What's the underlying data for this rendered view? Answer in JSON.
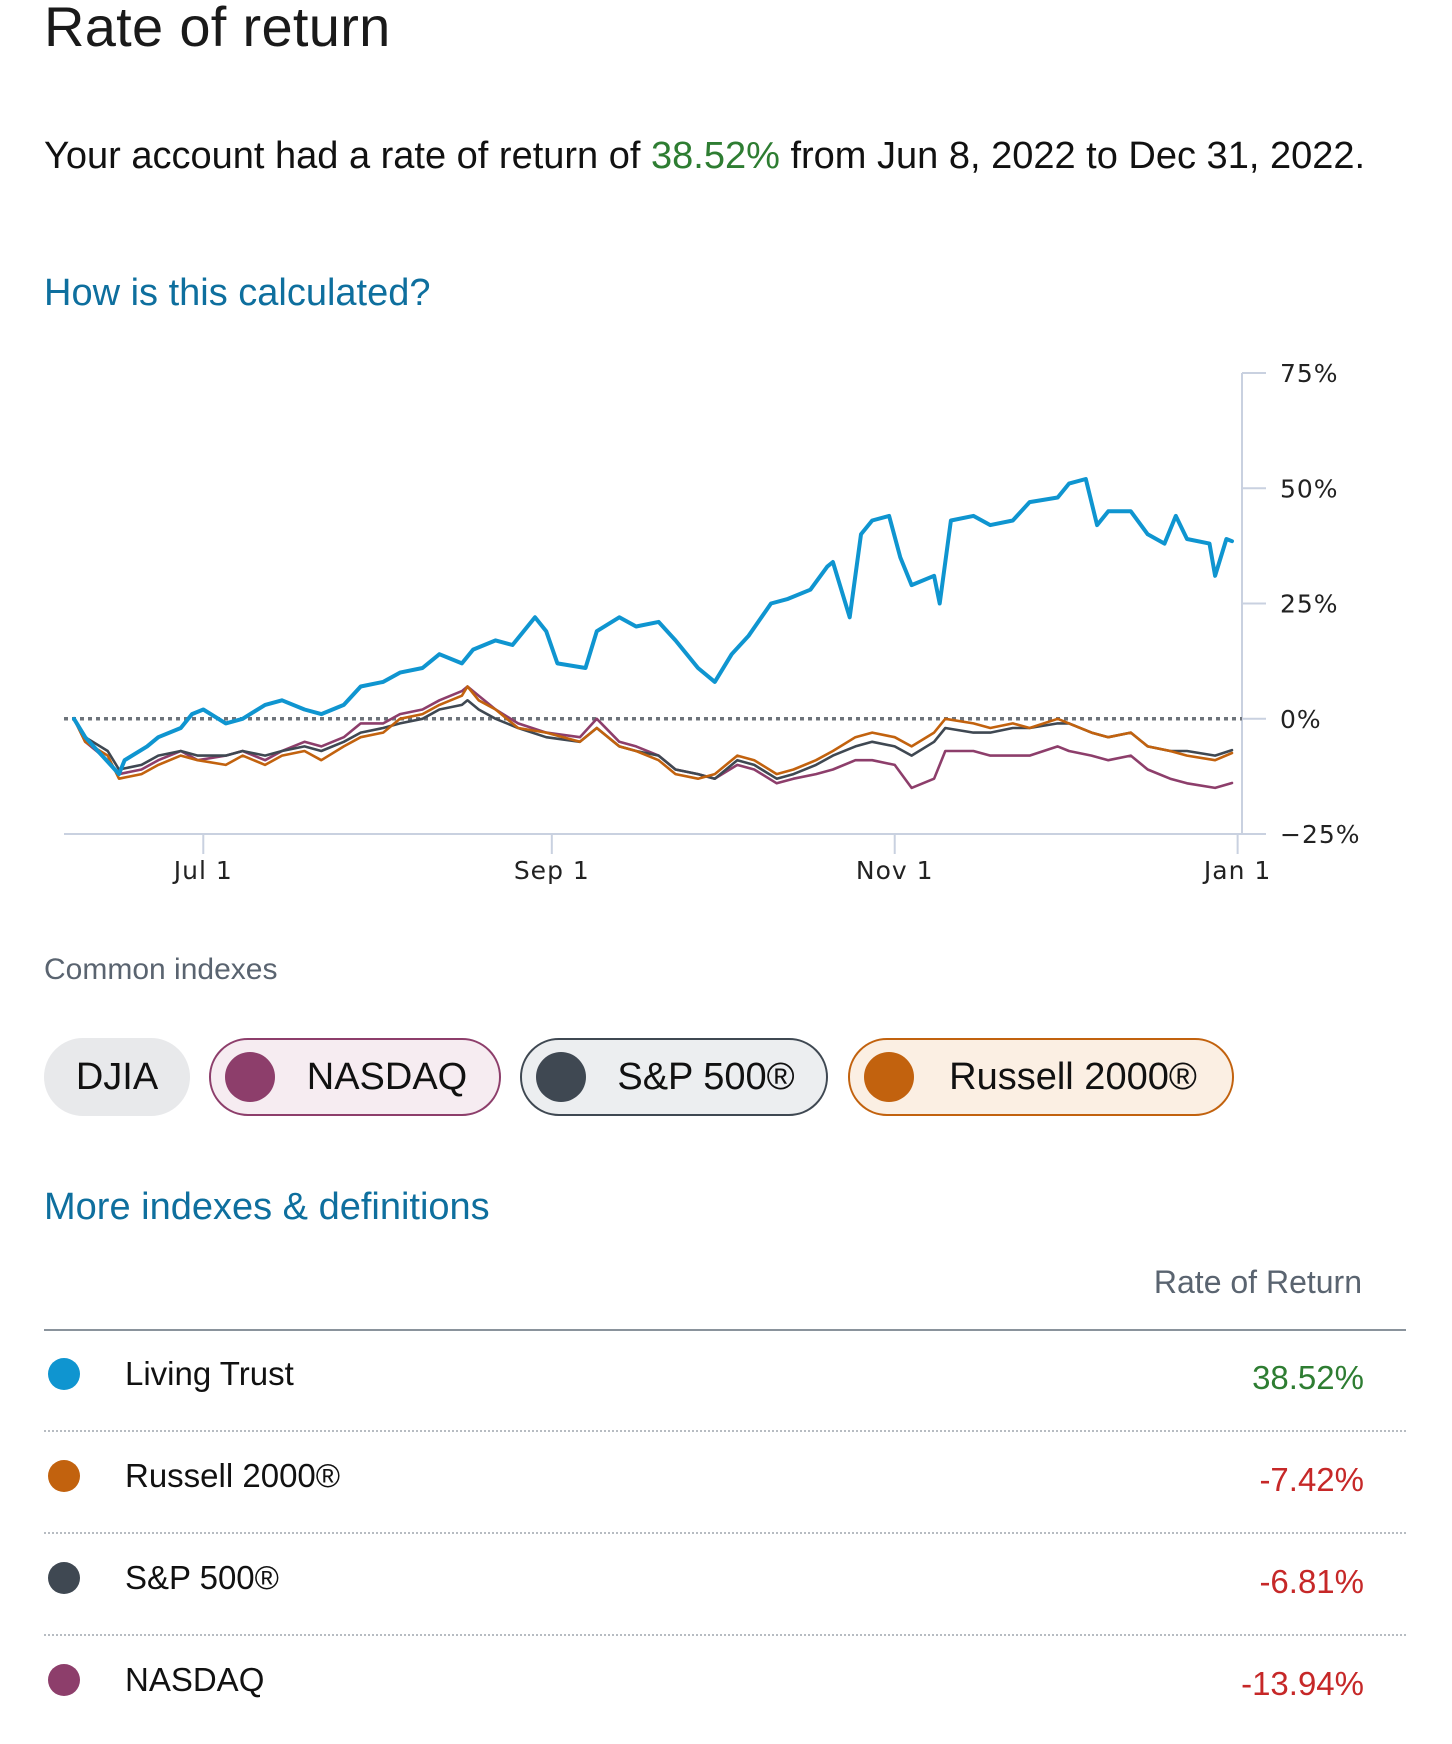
{
  "page": {
    "title": "Rate of return",
    "summary_prefix": "Your account had a rate of return of ",
    "summary_value": "38.52%",
    "summary_suffix": " from Jun 8, 2022 to Dec 31, 2022.",
    "how_link": "How is this calculated?",
    "more_link": "More indexes & definitions",
    "common_indexes_label": "Common indexes"
  },
  "colors": {
    "account": "#0f95d0",
    "nasdaq": "#8d3e6b",
    "sp500": "#3f4852",
    "russell": "#c2620e",
    "positive": "#2e7d32",
    "negative": "#c62828",
    "link": "#0e6f9e"
  },
  "chips": [
    {
      "label": "DJIA",
      "selected": false
    },
    {
      "label": "NASDAQ",
      "selected": true
    },
    {
      "label": "S&P 500®",
      "selected": true
    },
    {
      "label": "Russell 2000®",
      "selected": true
    }
  ],
  "table": {
    "header": "Rate of Return",
    "rows": [
      {
        "name": "Living Trust",
        "value": "38.52%"
      },
      {
        "name": "Russell 2000®",
        "value": "-7.42%"
      },
      {
        "name": "S&P 500®",
        "value": "-6.81%"
      },
      {
        "name": "NASDAQ",
        "value": "-13.94%"
      }
    ]
  },
  "chart_data": {
    "type": "line",
    "x_start": "2022-06-08",
    "x_end": "2022-12-31",
    "ylim": [
      -25,
      75
    ],
    "y_ticks": [
      75,
      50,
      25,
      0,
      -25
    ],
    "y_tick_labels": [
      "75%",
      "50%",
      "25%",
      "0%",
      "−25%"
    ],
    "x_ticks": [
      "2022-07-01",
      "2022-09-01",
      "2022-11-01",
      "2023-01-01"
    ],
    "x_tick_labels": [
      "Jul 1",
      "Sep 1",
      "Nov 1",
      "Jan 1"
    ],
    "zero_line": "dotted",
    "y_axis_side": "right",
    "series": [
      {
        "name": "Living Trust",
        "color_key": "account",
        "points": [
          [
            "2022-06-08",
            0
          ],
          [
            "2022-06-10",
            -4
          ],
          [
            "2022-06-13",
            -8
          ],
          [
            "2022-06-16",
            -12
          ],
          [
            "2022-06-17",
            -9
          ],
          [
            "2022-06-21",
            -6
          ],
          [
            "2022-06-23",
            -4
          ],
          [
            "2022-06-27",
            -2
          ],
          [
            "2022-06-29",
            1
          ],
          [
            "2022-07-01",
            2
          ],
          [
            "2022-07-05",
            -1
          ],
          [
            "2022-07-08",
            0
          ],
          [
            "2022-07-12",
            3
          ],
          [
            "2022-07-15",
            4
          ],
          [
            "2022-07-19",
            2
          ],
          [
            "2022-07-22",
            1
          ],
          [
            "2022-07-26",
            3
          ],
          [
            "2022-07-29",
            7
          ],
          [
            "2022-08-02",
            8
          ],
          [
            "2022-08-05",
            10
          ],
          [
            "2022-08-09",
            11
          ],
          [
            "2022-08-12",
            14
          ],
          [
            "2022-08-16",
            12
          ],
          [
            "2022-08-18",
            15
          ],
          [
            "2022-08-22",
            17
          ],
          [
            "2022-08-25",
            16
          ],
          [
            "2022-08-29",
            22
          ],
          [
            "2022-08-31",
            19
          ],
          [
            "2022-09-02",
            12
          ],
          [
            "2022-09-07",
            11
          ],
          [
            "2022-09-09",
            19
          ],
          [
            "2022-09-13",
            22
          ],
          [
            "2022-09-16",
            20
          ],
          [
            "2022-09-20",
            21
          ],
          [
            "2022-09-23",
            17
          ],
          [
            "2022-09-27",
            11
          ],
          [
            "2022-09-30",
            8
          ],
          [
            "2022-10-03",
            14
          ],
          [
            "2022-10-06",
            18
          ],
          [
            "2022-10-10",
            25
          ],
          [
            "2022-10-13",
            26
          ],
          [
            "2022-10-17",
            28
          ],
          [
            "2022-10-20",
            33
          ],
          [
            "2022-10-21",
            34
          ],
          [
            "2022-10-24",
            22
          ],
          [
            "2022-10-26",
            40
          ],
          [
            "2022-10-28",
            43
          ],
          [
            "2022-10-31",
            44
          ],
          [
            "2022-11-02",
            35
          ],
          [
            "2022-11-04",
            29
          ],
          [
            "2022-11-08",
            31
          ],
          [
            "2022-11-09",
            25
          ],
          [
            "2022-11-11",
            43
          ],
          [
            "2022-11-15",
            44
          ],
          [
            "2022-11-18",
            42
          ],
          [
            "2022-11-22",
            43
          ],
          [
            "2022-11-25",
            47
          ],
          [
            "2022-11-30",
            48
          ],
          [
            "2022-12-02",
            51
          ],
          [
            "2022-12-05",
            52
          ],
          [
            "2022-12-07",
            42
          ],
          [
            "2022-12-09",
            45
          ],
          [
            "2022-12-13",
            45
          ],
          [
            "2022-12-16",
            40
          ],
          [
            "2022-12-19",
            38
          ],
          [
            "2022-12-21",
            44
          ],
          [
            "2022-12-23",
            39
          ],
          [
            "2022-12-27",
            38
          ],
          [
            "2022-12-28",
            31
          ],
          [
            "2022-12-30",
            39
          ],
          [
            "2022-12-31",
            38.52
          ]
        ]
      },
      {
        "name": "Russell 2000®",
        "color_key": "russell",
        "points": [
          [
            "2022-06-08",
            0
          ],
          [
            "2022-06-10",
            -5
          ],
          [
            "2022-06-14",
            -8
          ],
          [
            "2022-06-16",
            -13
          ],
          [
            "2022-06-20",
            -12
          ],
          [
            "2022-06-23",
            -10
          ],
          [
            "2022-06-27",
            -8
          ],
          [
            "2022-06-30",
            -9
          ],
          [
            "2022-07-05",
            -10
          ],
          [
            "2022-07-08",
            -8
          ],
          [
            "2022-07-12",
            -10
          ],
          [
            "2022-07-15",
            -8
          ],
          [
            "2022-07-19",
            -7
          ],
          [
            "2022-07-22",
            -9
          ],
          [
            "2022-07-26",
            -6
          ],
          [
            "2022-07-29",
            -4
          ],
          [
            "2022-08-02",
            -3
          ],
          [
            "2022-08-05",
            0
          ],
          [
            "2022-08-09",
            1
          ],
          [
            "2022-08-12",
            3
          ],
          [
            "2022-08-16",
            5
          ],
          [
            "2022-08-17",
            7
          ],
          [
            "2022-08-19",
            4
          ],
          [
            "2022-08-22",
            2
          ],
          [
            "2022-08-26",
            -2
          ],
          [
            "2022-08-31",
            -3
          ],
          [
            "2022-09-06",
            -5
          ],
          [
            "2022-09-09",
            -2
          ],
          [
            "2022-09-13",
            -6
          ],
          [
            "2022-09-16",
            -7
          ],
          [
            "2022-09-20",
            -9
          ],
          [
            "2022-09-23",
            -12
          ],
          [
            "2022-09-27",
            -13
          ],
          [
            "2022-09-30",
            -12
          ],
          [
            "2022-10-04",
            -8
          ],
          [
            "2022-10-07",
            -9
          ],
          [
            "2022-10-11",
            -12
          ],
          [
            "2022-10-14",
            -11
          ],
          [
            "2022-10-18",
            -9
          ],
          [
            "2022-10-21",
            -7
          ],
          [
            "2022-10-25",
            -4
          ],
          [
            "2022-10-28",
            -3
          ],
          [
            "2022-11-01",
            -4
          ],
          [
            "2022-11-04",
            -6
          ],
          [
            "2022-11-08",
            -3
          ],
          [
            "2022-11-10",
            0
          ],
          [
            "2022-11-15",
            -1
          ],
          [
            "2022-11-18",
            -2
          ],
          [
            "2022-11-22",
            -1
          ],
          [
            "2022-11-25",
            -2
          ],
          [
            "2022-11-30",
            0
          ],
          [
            "2022-12-02",
            -1
          ],
          [
            "2022-12-06",
            -3
          ],
          [
            "2022-12-09",
            -4
          ],
          [
            "2022-12-13",
            -3
          ],
          [
            "2022-12-16",
            -6
          ],
          [
            "2022-12-20",
            -7
          ],
          [
            "2022-12-23",
            -8
          ],
          [
            "2022-12-28",
            -9
          ],
          [
            "2022-12-31",
            -7.42
          ]
        ]
      },
      {
        "name": "S&P 500®",
        "color_key": "sp500",
        "points": [
          [
            "2022-06-08",
            0
          ],
          [
            "2022-06-10",
            -4
          ],
          [
            "2022-06-14",
            -7
          ],
          [
            "2022-06-16",
            -11
          ],
          [
            "2022-06-20",
            -10
          ],
          [
            "2022-06-23",
            -8
          ],
          [
            "2022-06-27",
            -7
          ],
          [
            "2022-06-30",
            -8
          ],
          [
            "2022-07-05",
            -8
          ],
          [
            "2022-07-08",
            -7
          ],
          [
            "2022-07-12",
            -8
          ],
          [
            "2022-07-15",
            -7
          ],
          [
            "2022-07-19",
            -6
          ],
          [
            "2022-07-22",
            -7
          ],
          [
            "2022-07-26",
            -5
          ],
          [
            "2022-07-29",
            -3
          ],
          [
            "2022-08-02",
            -2
          ],
          [
            "2022-08-05",
            -1
          ],
          [
            "2022-08-09",
            0
          ],
          [
            "2022-08-12",
            2
          ],
          [
            "2022-08-16",
            3
          ],
          [
            "2022-08-17",
            4
          ],
          [
            "2022-08-19",
            2
          ],
          [
            "2022-08-22",
            0
          ],
          [
            "2022-08-26",
            -2
          ],
          [
            "2022-08-31",
            -4
          ],
          [
            "2022-09-06",
            -5
          ],
          [
            "2022-09-09",
            -2
          ],
          [
            "2022-09-13",
            -6
          ],
          [
            "2022-09-16",
            -7
          ],
          [
            "2022-09-20",
            -8
          ],
          [
            "2022-09-23",
            -11
          ],
          [
            "2022-09-27",
            -12
          ],
          [
            "2022-09-30",
            -13
          ],
          [
            "2022-10-04",
            -9
          ],
          [
            "2022-10-07",
            -10
          ],
          [
            "2022-10-11",
            -13
          ],
          [
            "2022-10-14",
            -12
          ],
          [
            "2022-10-18",
            -10
          ],
          [
            "2022-10-21",
            -8
          ],
          [
            "2022-10-25",
            -6
          ],
          [
            "2022-10-28",
            -5
          ],
          [
            "2022-11-01",
            -6
          ],
          [
            "2022-11-04",
            -8
          ],
          [
            "2022-11-08",
            -5
          ],
          [
            "2022-11-10",
            -2
          ],
          [
            "2022-11-15",
            -3
          ],
          [
            "2022-11-18",
            -3
          ],
          [
            "2022-11-22",
            -2
          ],
          [
            "2022-11-25",
            -2
          ],
          [
            "2022-11-30",
            -1
          ],
          [
            "2022-12-02",
            -1
          ],
          [
            "2022-12-06",
            -3
          ],
          [
            "2022-12-09",
            -4
          ],
          [
            "2022-12-13",
            -3
          ],
          [
            "2022-12-16",
            -6
          ],
          [
            "2022-12-20",
            -7
          ],
          [
            "2022-12-23",
            -7
          ],
          [
            "2022-12-28",
            -8
          ],
          [
            "2022-12-31",
            -6.81
          ]
        ]
      },
      {
        "name": "NASDAQ",
        "color_key": "nasdaq",
        "points": [
          [
            "2022-06-08",
            0
          ],
          [
            "2022-06-10",
            -5
          ],
          [
            "2022-06-14",
            -9
          ],
          [
            "2022-06-16",
            -12
          ],
          [
            "2022-06-20",
            -11
          ],
          [
            "2022-06-23",
            -9
          ],
          [
            "2022-06-27",
            -7
          ],
          [
            "2022-06-30",
            -9
          ],
          [
            "2022-07-05",
            -8
          ],
          [
            "2022-07-08",
            -7
          ],
          [
            "2022-07-12",
            -9
          ],
          [
            "2022-07-15",
            -7
          ],
          [
            "2022-07-19",
            -5
          ],
          [
            "2022-07-22",
            -6
          ],
          [
            "2022-07-26",
            -4
          ],
          [
            "2022-07-29",
            -1
          ],
          [
            "2022-08-02",
            -1
          ],
          [
            "2022-08-05",
            1
          ],
          [
            "2022-08-09",
            2
          ],
          [
            "2022-08-12",
            4
          ],
          [
            "2022-08-16",
            6
          ],
          [
            "2022-08-17",
            7
          ],
          [
            "2022-08-19",
            5
          ],
          [
            "2022-08-22",
            2
          ],
          [
            "2022-08-26",
            -1
          ],
          [
            "2022-08-31",
            -3
          ],
          [
            "2022-09-06",
            -4
          ],
          [
            "2022-09-09",
            0
          ],
          [
            "2022-09-13",
            -5
          ],
          [
            "2022-09-16",
            -6
          ],
          [
            "2022-09-20",
            -8
          ],
          [
            "2022-09-23",
            -11
          ],
          [
            "2022-09-27",
            -12
          ],
          [
            "2022-09-30",
            -13
          ],
          [
            "2022-10-04",
            -10
          ],
          [
            "2022-10-07",
            -11
          ],
          [
            "2022-10-11",
            -14
          ],
          [
            "2022-10-14",
            -13
          ],
          [
            "2022-10-18",
            -12
          ],
          [
            "2022-10-21",
            -11
          ],
          [
            "2022-10-25",
            -9
          ],
          [
            "2022-10-28",
            -9
          ],
          [
            "2022-11-01",
            -10
          ],
          [
            "2022-11-04",
            -15
          ],
          [
            "2022-11-08",
            -13
          ],
          [
            "2022-11-10",
            -7
          ],
          [
            "2022-11-15",
            -7
          ],
          [
            "2022-11-18",
            -8
          ],
          [
            "2022-11-22",
            -8
          ],
          [
            "2022-11-25",
            -8
          ],
          [
            "2022-11-30",
            -6
          ],
          [
            "2022-12-02",
            -7
          ],
          [
            "2022-12-06",
            -8
          ],
          [
            "2022-12-09",
            -9
          ],
          [
            "2022-12-13",
            -8
          ],
          [
            "2022-12-16",
            -11
          ],
          [
            "2022-12-20",
            -13
          ],
          [
            "2022-12-23",
            -14
          ],
          [
            "2022-12-28",
            -15
          ],
          [
            "2022-12-31",
            -13.94
          ]
        ]
      }
    ]
  }
}
